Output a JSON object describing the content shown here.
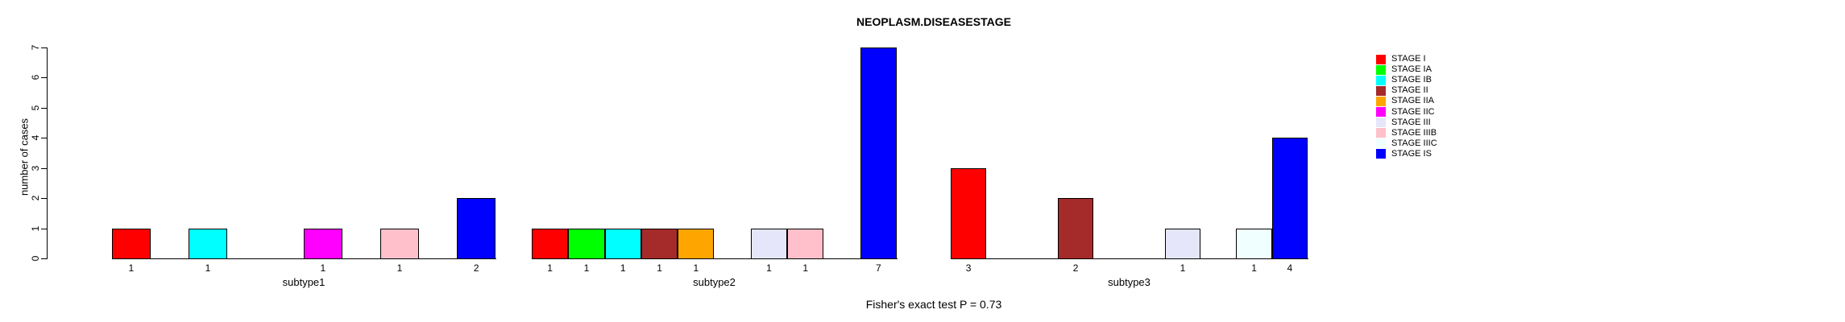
{
  "chart_data": {
    "type": "bar",
    "title": "NEOPLASM.DISEASESTAGE",
    "ylabel": "number of cases",
    "caption": "Fisher's exact test P = 0.73",
    "ylim": [
      0,
      7
    ],
    "yticks": [
      0,
      1,
      2,
      3,
      4,
      5,
      6,
      7
    ],
    "grid": false,
    "legend_position": "right",
    "bar_labels": "each non-zero bar shows its count below the baseline",
    "categories": [
      "subtype1",
      "subtype2",
      "subtype3"
    ],
    "series": [
      {
        "name": "STAGE I",
        "color": "#FF0000",
        "values": [
          1,
          1,
          3
        ]
      },
      {
        "name": "STAGE IA",
        "color": "#00FF00",
        "values": [
          0,
          1,
          0
        ]
      },
      {
        "name": "STAGE IB",
        "color": "#00FFFF",
        "values": [
          1,
          1,
          0
        ]
      },
      {
        "name": "STAGE II",
        "color": "#A52A2A",
        "values": [
          0,
          1,
          2
        ]
      },
      {
        "name": "STAGE IIA",
        "color": "#FFA500",
        "values": [
          0,
          1,
          0
        ]
      },
      {
        "name": "STAGE IIC",
        "color": "#FF00FF",
        "values": [
          1,
          0,
          0
        ]
      },
      {
        "name": "STAGE III",
        "color": "#E6E6FA",
        "values": [
          0,
          1,
          1
        ]
      },
      {
        "name": "STAGE IIIB",
        "color": "#FFC0CB",
        "values": [
          1,
          1,
          0
        ]
      },
      {
        "name": "STAGE IIIC",
        "color": "#F0FFFF",
        "values": [
          0,
          0,
          1
        ]
      },
      {
        "name": "STAGE IS",
        "color": "#0000FF",
        "values": [
          2,
          7,
          4
        ]
      }
    ]
  }
}
